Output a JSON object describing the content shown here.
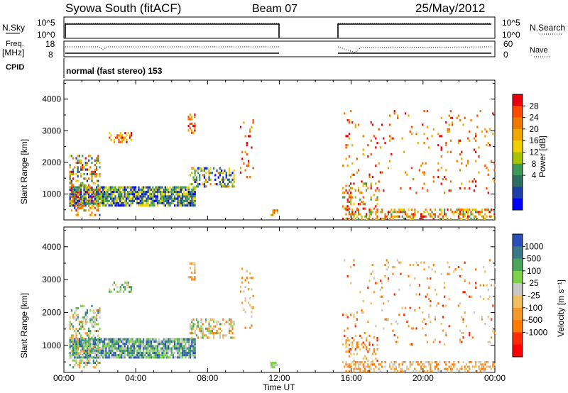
{
  "header": {
    "station": "Syowa South (fitACF)",
    "beam": "Beam 07",
    "date": "25/May/2012"
  },
  "sky_panel": {
    "left_label": "N.Sky",
    "left_ticks": [
      "10^5",
      "10^0"
    ],
    "right_ticks": [
      "10^5",
      "10^0"
    ],
    "right_label": "N.Search"
  },
  "freq_panel": {
    "left_label_1": "Freq.",
    "left_label_2": "[MHz]",
    "left_ticks": [
      "18",
      "8"
    ],
    "right_ticks": [
      "60",
      "0"
    ],
    "right_label": "Nave"
  },
  "cpid_panel": {
    "label": "CPID",
    "mode": "normal (fast stereo) 153"
  },
  "x_axis": {
    "label": "Time UT",
    "ticks": [
      "00:00",
      "04:00",
      "08:00",
      "12:00",
      "16:00",
      "20:00",
      "00:00"
    ]
  },
  "chart_data": [
    {
      "type": "heatmap",
      "name": "power",
      "ylabel": "Slant Range [km]",
      "ylim": [
        180,
        4600
      ],
      "yticks": [
        1000,
        2000,
        3000,
        4000
      ],
      "xlim_hours": [
        0,
        24
      ],
      "data_gaps_hours": [
        [
          12.0,
          15.5
        ]
      ],
      "colorbar": {
        "label": "Power [dB]",
        "ticks": [
          "28",
          "24",
          "20",
          "16",
          "12",
          "8",
          "4"
        ],
        "colors": [
          "#e8000a",
          "#ff4a00",
          "#f07a00",
          "#f0a800",
          "#f0d000",
          "#a8c400",
          "#3f9a5a",
          "#2d6f60",
          "#1f3fa8",
          "#0000ff"
        ],
        "range": [
          0,
          32
        ]
      },
      "regions": [
        {
          "t0": 0.3,
          "t1": 7.3,
          "r0": 600,
          "r1": 1200,
          "dens": 0.85,
          "c": [
            4,
            9
          ]
        },
        {
          "t0": 0.3,
          "t1": 2.0,
          "r0": 300,
          "r1": 2200,
          "dens": 0.35,
          "c": [
            0,
            8
          ]
        },
        {
          "t0": 7.0,
          "t1": 9.5,
          "r0": 1200,
          "r1": 1800,
          "dens": 0.45,
          "c": [
            2,
            9
          ]
        },
        {
          "t0": 2.5,
          "t1": 3.8,
          "r0": 2600,
          "r1": 2900,
          "dens": 0.4,
          "c": [
            0,
            4
          ]
        },
        {
          "t0": 6.9,
          "t1": 7.3,
          "r0": 2900,
          "r1": 3500,
          "dens": 0.4,
          "c": [
            0,
            3
          ]
        },
        {
          "t0": 9.8,
          "t1": 10.5,
          "r0": 1500,
          "r1": 3300,
          "dens": 0.12,
          "c": [
            0,
            3
          ]
        },
        {
          "t0": 11.5,
          "t1": 11.9,
          "r0": 300,
          "r1": 450,
          "dens": 0.6,
          "c": [
            1,
            4
          ]
        },
        {
          "t0": 15.5,
          "t1": 24.0,
          "r0": 180,
          "r1": 500,
          "dens": 0.45,
          "c": [
            0,
            6
          ]
        },
        {
          "t0": 15.5,
          "t1": 17.5,
          "r0": 500,
          "r1": 1300,
          "dens": 0.25,
          "c": [
            0,
            6
          ]
        },
        {
          "t0": 15.5,
          "t1": 24.0,
          "r0": 1000,
          "r1": 3600,
          "dens": 0.05,
          "c": [
            0,
            3
          ]
        }
      ]
    },
    {
      "type": "heatmap",
      "name": "velocity",
      "ylabel": "Slant Range [km]",
      "ylim": [
        180,
        4600
      ],
      "yticks": [
        1000,
        2000,
        3000,
        4000
      ],
      "xlim_hours": [
        0,
        24
      ],
      "data_gaps_hours": [
        [
          12.0,
          15.5
        ]
      ],
      "colorbar": {
        "label": "Velocity [m s⁻¹]",
        "ticks": [
          "1000",
          "500",
          "100",
          "25",
          "-25",
          "-100",
          "-500",
          "-1000"
        ],
        "colors": [
          "#2a4fb8",
          "#3a7a88",
          "#4aa65a",
          "#7ed24a",
          "#c8c8c8",
          "#f0c060",
          "#f59a2a",
          "#ff7a00",
          "#ff2a00",
          "#ff0000"
        ],
        "range": [
          -1200,
          1200
        ]
      },
      "regions": [
        {
          "t0": 0.3,
          "t1": 7.3,
          "r0": 600,
          "r1": 1200,
          "dens": 0.85,
          "c": [
            0,
            4
          ]
        },
        {
          "t0": 0.3,
          "t1": 2.0,
          "r0": 300,
          "r1": 2200,
          "dens": 0.35,
          "c": [
            1,
            6
          ]
        },
        {
          "t0": 7.0,
          "t1": 9.5,
          "r0": 1200,
          "r1": 1800,
          "dens": 0.45,
          "c": [
            2,
            7
          ]
        },
        {
          "t0": 2.5,
          "t1": 3.8,
          "r0": 2600,
          "r1": 2900,
          "dens": 0.4,
          "c": [
            2,
            5
          ]
        },
        {
          "t0": 6.9,
          "t1": 7.3,
          "r0": 2900,
          "r1": 3500,
          "dens": 0.4,
          "c": [
            4,
            7
          ]
        },
        {
          "t0": 9.8,
          "t1": 10.5,
          "r0": 1500,
          "r1": 3300,
          "dens": 0.12,
          "c": [
            4,
            7
          ]
        },
        {
          "t0": 11.5,
          "t1": 11.9,
          "r0": 300,
          "r1": 450,
          "dens": 0.6,
          "c": [
            3,
            4
          ]
        },
        {
          "t0": 15.5,
          "t1": 24.0,
          "r0": 180,
          "r1": 500,
          "dens": 0.45,
          "c": [
            4,
            7
          ]
        },
        {
          "t0": 15.5,
          "t1": 17.5,
          "r0": 500,
          "r1": 1300,
          "dens": 0.25,
          "c": [
            5,
            8
          ]
        },
        {
          "t0": 15.5,
          "t1": 24.0,
          "r0": 1000,
          "r1": 3600,
          "dens": 0.05,
          "c": [
            4,
            8
          ]
        }
      ]
    }
  ]
}
